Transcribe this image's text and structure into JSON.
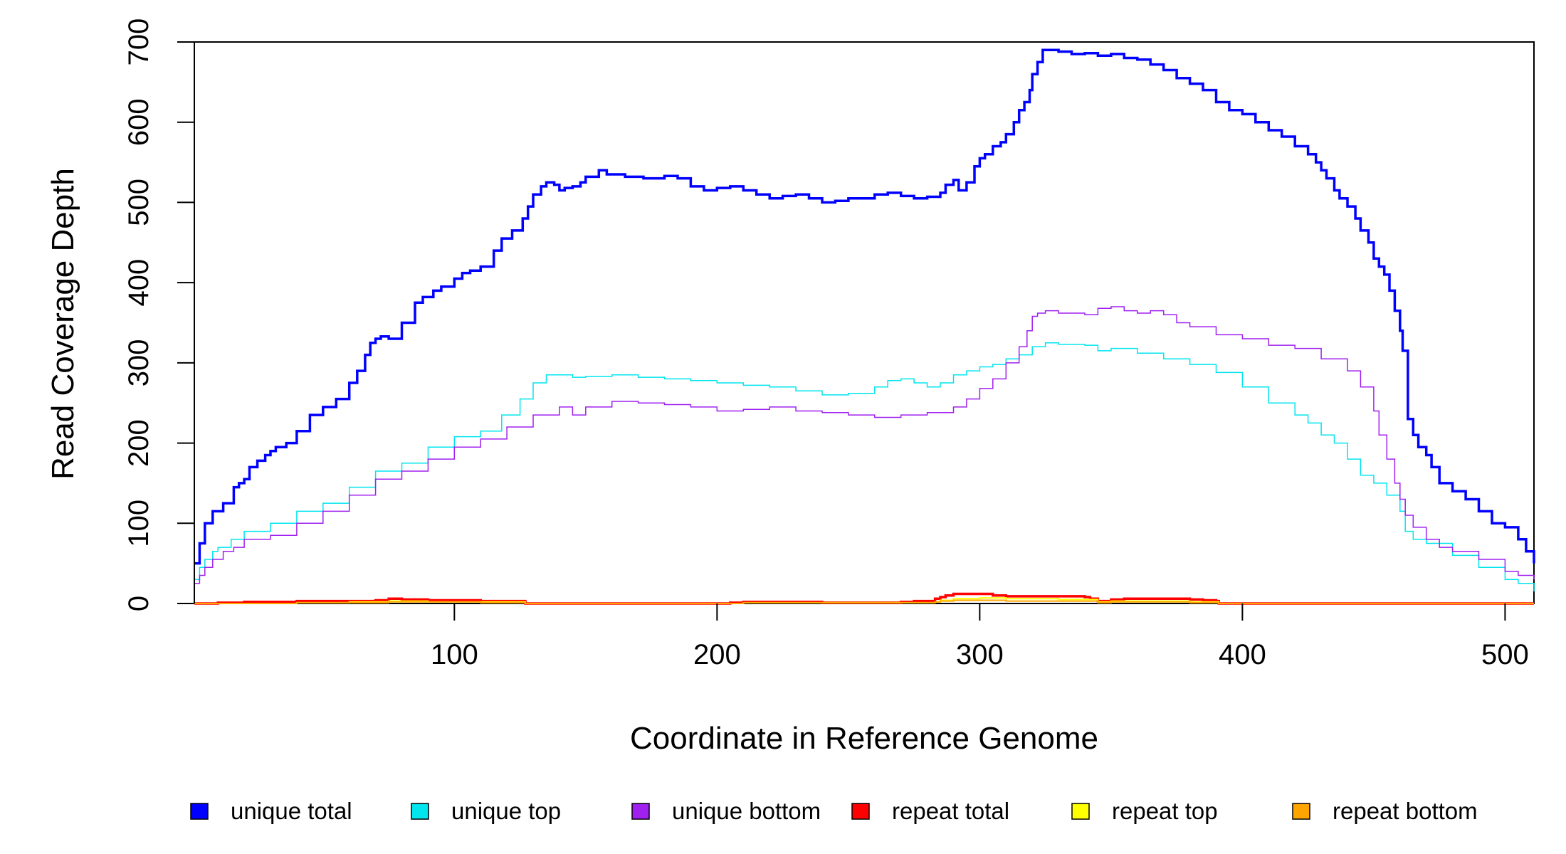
{
  "chart_data": {
    "type": "line",
    "title": "",
    "xlabel": "Coordinate in Reference Genome",
    "ylabel": "Read Coverage Depth",
    "xlim": [
      1,
      511
    ],
    "ylim": [
      0,
      700
    ],
    "xticks": [
      100,
      200,
      300,
      400,
      500
    ],
    "yticks": [
      0,
      100,
      200,
      300,
      400,
      500,
      600,
      700
    ],
    "grid": false,
    "legend_position": "bottom",
    "series": [
      {
        "name": "unique total",
        "color": "#0000ff",
        "x": [
          1,
          3,
          5,
          8,
          12,
          16,
          18,
          20,
          22,
          25,
          28,
          30,
          32,
          36,
          40,
          45,
          50,
          55,
          60,
          63,
          66,
          68,
          70,
          72,
          75,
          80,
          85,
          88,
          92,
          95,
          100,
          103,
          106,
          110,
          115,
          118,
          122,
          126,
          128,
          130,
          133,
          135,
          138,
          140,
          142,
          145,
          148,
          150,
          155,
          158,
          165,
          172,
          180,
          185,
          190,
          195,
          200,
          205,
          210,
          215,
          220,
          225,
          230,
          235,
          240,
          245,
          250,
          255,
          260,
          265,
          270,
          275,
          280,
          285,
          287,
          290,
          292,
          295,
          298,
          300,
          302,
          305,
          308,
          310,
          313,
          315,
          317,
          319,
          320,
          322,
          324,
          326,
          330,
          335,
          340,
          345,
          350,
          355,
          360,
          365,
          370,
          375,
          380,
          385,
          390,
          395,
          400,
          405,
          410,
          415,
          420,
          425,
          428,
          430,
          432,
          435,
          437,
          440,
          443,
          445,
          448,
          450,
          452,
          454,
          456,
          458,
          460,
          461,
          463,
          465,
          467,
          470,
          472,
          475,
          480,
          485,
          490,
          495,
          500,
          505,
          508,
          511
        ],
        "y": [
          50,
          75,
          100,
          115,
          125,
          145,
          150,
          155,
          170,
          178,
          185,
          190,
          195,
          200,
          215,
          235,
          245,
          255,
          275,
          290,
          310,
          325,
          330,
          333,
          330,
          350,
          375,
          382,
          390,
          395,
          405,
          412,
          415,
          420,
          440,
          455,
          465,
          480,
          495,
          510,
          520,
          525,
          522,
          515,
          518,
          520,
          525,
          532,
          540,
          535,
          532,
          530,
          533,
          530,
          520,
          515,
          518,
          520,
          515,
          510,
          505,
          508,
          510,
          505,
          500,
          502,
          505,
          505,
          510,
          512,
          508,
          505,
          507,
          512,
          522,
          528,
          515,
          525,
          545,
          555,
          560,
          570,
          575,
          585,
          600,
          615,
          625,
          640,
          660,
          675,
          690,
          690,
          688,
          685,
          686,
          683,
          685,
          680,
          678,
          672,
          665,
          655,
          648,
          640,
          625,
          615,
          610,
          600,
          590,
          582,
          570,
          560,
          550,
          540,
          530,
          515,
          505,
          495,
          480,
          465,
          450,
          430,
          420,
          410,
          390,
          365,
          340,
          315,
          230,
          210,
          195,
          185,
          170,
          150,
          140,
          130,
          115,
          100,
          95,
          80,
          65,
          50
        ],
        "interp": "step",
        "width": 3.5
      },
      {
        "name": "unique top",
        "color": "#00e5ee",
        "x": [
          1,
          3,
          5,
          8,
          10,
          15,
          20,
          30,
          40,
          50,
          60,
          70,
          80,
          90,
          100,
          110,
          118,
          125,
          130,
          135,
          140,
          145,
          150,
          160,
          170,
          180,
          190,
          200,
          210,
          220,
          230,
          240,
          250,
          260,
          265,
          270,
          275,
          280,
          285,
          290,
          295,
          300,
          305,
          310,
          315,
          320,
          325,
          330,
          340,
          345,
          350,
          360,
          370,
          380,
          390,
          400,
          410,
          420,
          425,
          430,
          435,
          440,
          445,
          450,
          455,
          460,
          462,
          465,
          470,
          480,
          490,
          500,
          505,
          511
        ],
        "y": [
          30,
          45,
          55,
          65,
          70,
          80,
          90,
          100,
          115,
          125,
          145,
          165,
          175,
          195,
          208,
          215,
          235,
          255,
          275,
          285,
          285,
          282,
          283,
          285,
          282,
          280,
          278,
          275,
          272,
          270,
          265,
          260,
          262,
          270,
          278,
          280,
          275,
          270,
          275,
          285,
          290,
          295,
          298,
          305,
          310,
          320,
          325,
          323,
          322,
          315,
          318,
          312,
          305,
          298,
          288,
          270,
          250,
          235,
          225,
          210,
          200,
          180,
          160,
          150,
          135,
          115,
          90,
          80,
          75,
          60,
          45,
          30,
          25,
          15
        ],
        "interp": "step",
        "width": 1.5
      },
      {
        "name": "unique bottom",
        "color": "#a020f0",
        "x": [
          1,
          3,
          5,
          8,
          12,
          16,
          20,
          30,
          40,
          50,
          60,
          70,
          80,
          90,
          100,
          110,
          120,
          130,
          140,
          145,
          150,
          160,
          170,
          180,
          190,
          200,
          210,
          220,
          230,
          240,
          250,
          260,
          270,
          280,
          290,
          295,
          300,
          305,
          310,
          315,
          318,
          320,
          322,
          325,
          330,
          340,
          345,
          350,
          355,
          360,
          365,
          370,
          375,
          380,
          390,
          400,
          410,
          420,
          430,
          440,
          445,
          450,
          452,
          455,
          458,
          460,
          462,
          465,
          470,
          475,
          480,
          490,
          500,
          505,
          511
        ],
        "y": [
          25,
          35,
          45,
          55,
          65,
          70,
          80,
          85,
          100,
          115,
          135,
          155,
          165,
          180,
          195,
          205,
          220,
          235,
          245,
          235,
          245,
          252,
          250,
          248,
          245,
          240,
          242,
          245,
          240,
          238,
          235,
          232,
          235,
          238,
          245,
          255,
          268,
          280,
          300,
          320,
          340,
          358,
          362,
          365,
          362,
          360,
          368,
          370,
          365,
          362,
          365,
          360,
          350,
          345,
          335,
          330,
          322,
          318,
          305,
          290,
          270,
          240,
          210,
          180,
          150,
          130,
          110,
          95,
          80,
          70,
          65,
          55,
          40,
          35,
          30
        ],
        "interp": "step",
        "width": 1.5
      },
      {
        "name": "repeat total",
        "color": "#ff0000",
        "x": [
          1,
          10,
          20,
          40,
          60,
          70,
          75,
          80,
          90,
          100,
          110,
          120,
          126,
          127,
          200,
          205,
          210,
          230,
          240,
          250,
          260,
          270,
          275,
          283,
          285,
          287,
          290,
          295,
          300,
          305,
          310,
          320,
          330,
          340,
          342,
          345,
          350,
          355,
          360,
          370,
          380,
          385,
          390,
          391,
          511
        ],
        "y": [
          0,
          1,
          2,
          3,
          3,
          4,
          6,
          5,
          4,
          4,
          3,
          3,
          3,
          0,
          0,
          1,
          2,
          2,
          1,
          1,
          1,
          2,
          3,
          6,
          8,
          10,
          12,
          12,
          12,
          10,
          9,
          9,
          9,
          8,
          6,
          3,
          5,
          6,
          6,
          6,
          5,
          4,
          3,
          0,
          0
        ],
        "interp": "step",
        "width": 3.5
      },
      {
        "name": "repeat top",
        "color": "#ffff00",
        "x": [
          1,
          40,
          60,
          75,
          90,
          110,
          127,
          200,
          210,
          240,
          270,
          283,
          285,
          290,
          300,
          310,
          320,
          330,
          340,
          345,
          350,
          360,
          380,
          391,
          511
        ],
        "y": [
          0,
          1,
          2,
          3,
          2,
          2,
          0,
          0,
          1,
          1,
          1,
          2,
          4,
          6,
          7,
          6,
          6,
          5,
          5,
          2,
          3,
          3,
          2,
          0,
          0
        ],
        "interp": "step",
        "width": 2
      },
      {
        "name": "repeat bottom",
        "color": "#ffa500",
        "x": [
          1,
          40,
          60,
          75,
          90,
          110,
          127,
          200,
          210,
          240,
          270,
          283,
          285,
          290,
          300,
          310,
          320,
          330,
          340,
          345,
          350,
          360,
          380,
          391,
          511
        ],
        "y": [
          0,
          1,
          1,
          2,
          2,
          1,
          0,
          0,
          1,
          1,
          1,
          2,
          3,
          4,
          4,
          3,
          3,
          3,
          3,
          1,
          2,
          2,
          1,
          0,
          0
        ],
        "interp": "step",
        "width": 2
      }
    ]
  }
}
